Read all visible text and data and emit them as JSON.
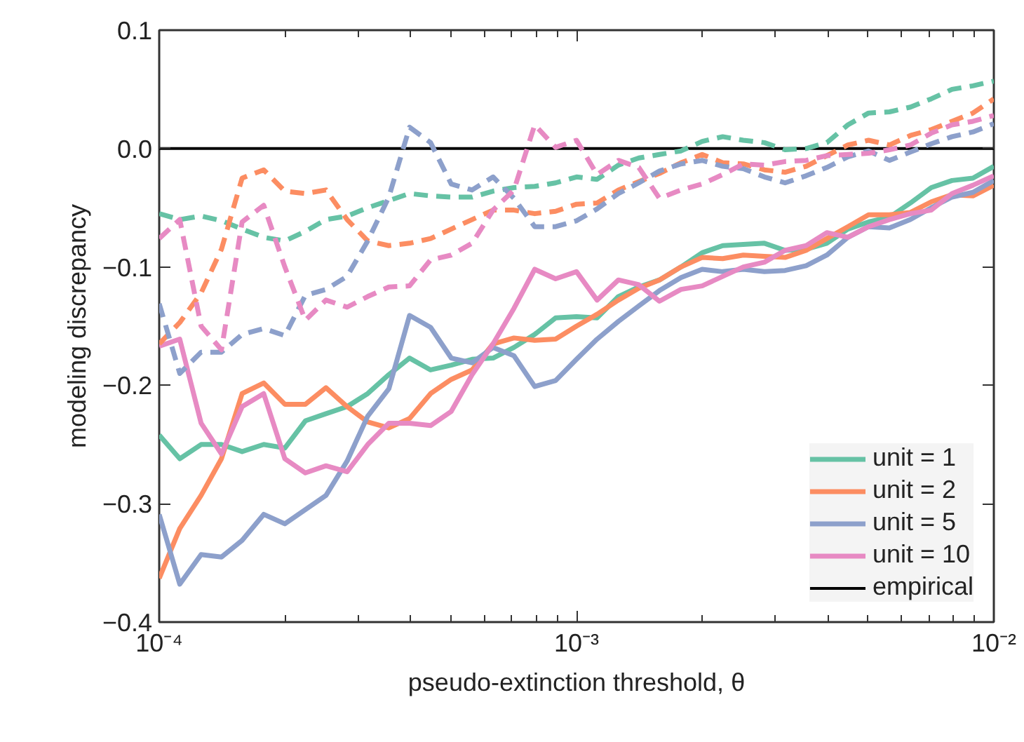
{
  "chart_data": {
    "type": "line",
    "xlabel": "pseudo-extinction threshold, θ",
    "ylabel": "modeling discrepancy",
    "x": [
      0.0001,
      0.000112,
      0.000126,
      0.000141,
      0.000158,
      0.000178,
      0.0002,
      0.000224,
      0.000251,
      0.000282,
      0.000316,
      0.000355,
      0.000398,
      0.000447,
      0.000501,
      0.000562,
      0.000631,
      0.000708,
      0.000794,
      0.000891,
      0.001,
      0.00112,
      0.00126,
      0.00141,
      0.00158,
      0.00178,
      0.002,
      0.00224,
      0.00251,
      0.00282,
      0.00316,
      0.00355,
      0.00398,
      0.00447,
      0.00501,
      0.00562,
      0.00631,
      0.00708,
      0.00794,
      0.00891,
      0.01
    ],
    "series": [
      {
        "name": "unit = 1",
        "color": "#66c2a5",
        "line_style": "solid",
        "values": [
          -0.242,
          -0.262,
          -0.25,
          -0.25,
          -0.256,
          -0.25,
          -0.253,
          -0.23,
          -0.224,
          -0.218,
          -0.207,
          -0.191,
          -0.177,
          -0.187,
          -0.183,
          -0.178,
          -0.177,
          -0.168,
          -0.157,
          -0.143,
          -0.142,
          -0.143,
          -0.125,
          -0.117,
          -0.111,
          -0.1,
          -0.088,
          -0.082,
          -0.081,
          -0.08,
          -0.086,
          -0.085,
          -0.08,
          -0.068,
          -0.062,
          -0.058,
          -0.046,
          -0.033,
          -0.027,
          -0.025,
          -0.015
        ]
      },
      {
        "name": "unit = 2",
        "color": "#fc8d62",
        "line_style": "solid",
        "values": [
          -0.363,
          -0.321,
          -0.293,
          -0.262,
          -0.207,
          -0.198,
          -0.216,
          -0.216,
          -0.202,
          -0.218,
          -0.231,
          -0.236,
          -0.228,
          -0.207,
          -0.195,
          -0.187,
          -0.165,
          -0.16,
          -0.162,
          -0.161,
          -0.15,
          -0.14,
          -0.128,
          -0.118,
          -0.111,
          -0.1,
          -0.092,
          -0.093,
          -0.09,
          -0.091,
          -0.092,
          -0.086,
          -0.076,
          -0.066,
          -0.056,
          -0.056,
          -0.054,
          -0.045,
          -0.039,
          -0.04,
          -0.031
        ]
      },
      {
        "name": "unit = 5",
        "color": "#8da0cb",
        "line_style": "solid",
        "values": [
          -0.309,
          -0.368,
          -0.343,
          -0.345,
          -0.331,
          -0.309,
          -0.317,
          -0.305,
          -0.293,
          -0.264,
          -0.226,
          -0.203,
          -0.141,
          -0.151,
          -0.177,
          -0.181,
          -0.168,
          -0.175,
          -0.201,
          -0.196,
          -0.178,
          -0.161,
          -0.146,
          -0.133,
          -0.12,
          -0.109,
          -0.102,
          -0.104,
          -0.102,
          -0.104,
          -0.103,
          -0.099,
          -0.09,
          -0.075,
          -0.066,
          -0.067,
          -0.06,
          -0.05,
          -0.041,
          -0.037,
          -0.027
        ]
      },
      {
        "name": "unit = 10",
        "color": "#e78ac3",
        "line_style": "solid",
        "values": [
          -0.167,
          -0.161,
          -0.232,
          -0.258,
          -0.218,
          -0.207,
          -0.262,
          -0.274,
          -0.268,
          -0.273,
          -0.25,
          -0.232,
          -0.232,
          -0.234,
          -0.222,
          -0.191,
          -0.165,
          -0.135,
          -0.102,
          -0.11,
          -0.104,
          -0.128,
          -0.111,
          -0.115,
          -0.129,
          -0.119,
          -0.116,
          -0.108,
          -0.1,
          -0.096,
          -0.086,
          -0.082,
          -0.071,
          -0.075,
          -0.066,
          -0.06,
          -0.055,
          -0.052,
          -0.038,
          -0.031,
          -0.023
        ]
      },
      {
        "color": "#66c2a5",
        "line_style": "dashed",
        "values": [
          -0.055,
          -0.06,
          -0.057,
          -0.061,
          -0.068,
          -0.075,
          -0.078,
          -0.07,
          -0.06,
          -0.057,
          -0.05,
          -0.044,
          -0.038,
          -0.04,
          -0.041,
          -0.041,
          -0.036,
          -0.033,
          -0.032,
          -0.029,
          -0.024,
          -0.026,
          -0.014,
          -0.008,
          -0.005,
          -0.002,
          0.006,
          0.01,
          0.007,
          0.005,
          -0.001,
          0.0,
          0.005,
          0.02,
          0.03,
          0.031,
          0.035,
          0.042,
          0.05,
          0.053,
          0.057
        ]
      },
      {
        "color": "#fc8d62",
        "line_style": "dashed",
        "values": [
          -0.165,
          -0.147,
          -0.122,
          -0.085,
          -0.025,
          -0.018,
          -0.036,
          -0.038,
          -0.035,
          -0.06,
          -0.078,
          -0.082,
          -0.08,
          -0.076,
          -0.068,
          -0.06,
          -0.052,
          -0.052,
          -0.055,
          -0.053,
          -0.047,
          -0.046,
          -0.035,
          -0.028,
          -0.021,
          -0.012,
          -0.005,
          -0.012,
          -0.013,
          -0.018,
          -0.02,
          -0.015,
          -0.006,
          0.003,
          0.007,
          0.003,
          0.011,
          0.016,
          0.023,
          0.03,
          0.042
        ]
      },
      {
        "color": "#8da0cb",
        "line_style": "dashed",
        "values": [
          -0.131,
          -0.19,
          -0.172,
          -0.172,
          -0.157,
          -0.152,
          -0.158,
          -0.124,
          -0.119,
          -0.108,
          -0.078,
          -0.041,
          0.018,
          0.005,
          -0.03,
          -0.035,
          -0.024,
          -0.042,
          -0.066,
          -0.066,
          -0.061,
          -0.051,
          -0.038,
          -0.029,
          -0.019,
          -0.013,
          -0.01,
          -0.015,
          -0.017,
          -0.024,
          -0.029,
          -0.023,
          -0.016,
          -0.007,
          -0.002,
          -0.01,
          -0.003,
          0.004,
          0.01,
          0.014,
          0.021
        ]
      },
      {
        "color": "#e78ac3",
        "line_style": "dashed",
        "values": [
          -0.076,
          -0.06,
          -0.15,
          -0.17,
          -0.062,
          -0.048,
          -0.1,
          -0.145,
          -0.128,
          -0.134,
          -0.125,
          -0.117,
          -0.116,
          -0.094,
          -0.09,
          -0.08,
          -0.052,
          -0.035,
          0.02,
          0.001,
          0.007,
          -0.022,
          -0.01,
          -0.016,
          -0.042,
          -0.035,
          -0.03,
          -0.022,
          -0.013,
          -0.014,
          -0.011,
          -0.01,
          -0.006,
          -0.005,
          -0.004,
          -0.001,
          0.003,
          0.013,
          0.02,
          0.023,
          0.028
        ]
      }
    ],
    "ref_lines": [
      {
        "axis": "y",
        "value": 0,
        "label": "empirical",
        "color": "#000000",
        "line_style": "solid"
      }
    ],
    "log": "x",
    "xlim": [
      0.0001,
      0.01
    ],
    "xticks": [
      {
        "value": 0.0001,
        "label": "10⁻⁴"
      },
      {
        "value": 0.0002,
        "label": null
      },
      {
        "value": 0.0003,
        "label": null
      },
      {
        "value": 0.0004,
        "label": null
      },
      {
        "value": 0.0005,
        "label": null
      },
      {
        "value": 0.0006,
        "label": null
      },
      {
        "value": 0.0007,
        "label": null
      },
      {
        "value": 0.0008,
        "label": null
      },
      {
        "value": 0.0009,
        "label": null
      },
      {
        "value": 0.001,
        "label": "10⁻³"
      },
      {
        "value": 0.002,
        "label": null
      },
      {
        "value": 0.003,
        "label": null
      },
      {
        "value": 0.004,
        "label": null
      },
      {
        "value": 0.005,
        "label": null
      },
      {
        "value": 0.006,
        "label": null
      },
      {
        "value": 0.007,
        "label": null
      },
      {
        "value": 0.008,
        "label": null
      },
      {
        "value": 0.009,
        "label": null
      },
      {
        "value": 0.01,
        "label": "10⁻²"
      }
    ],
    "ylim": [
      -0.4,
      0.1
    ],
    "yticks": [
      {
        "value": -0.4,
        "label": "−0.4"
      },
      {
        "value": -0.3,
        "label": "−0.3"
      },
      {
        "value": -0.2,
        "label": "−0.2"
      },
      {
        "value": -0.1,
        "label": "−0.1"
      },
      {
        "value": 0.0,
        "label": "0.0"
      },
      {
        "value": 0.1,
        "label": "0.1"
      }
    ],
    "grid": false,
    "legend": "bottom right",
    "marker": "none"
  }
}
